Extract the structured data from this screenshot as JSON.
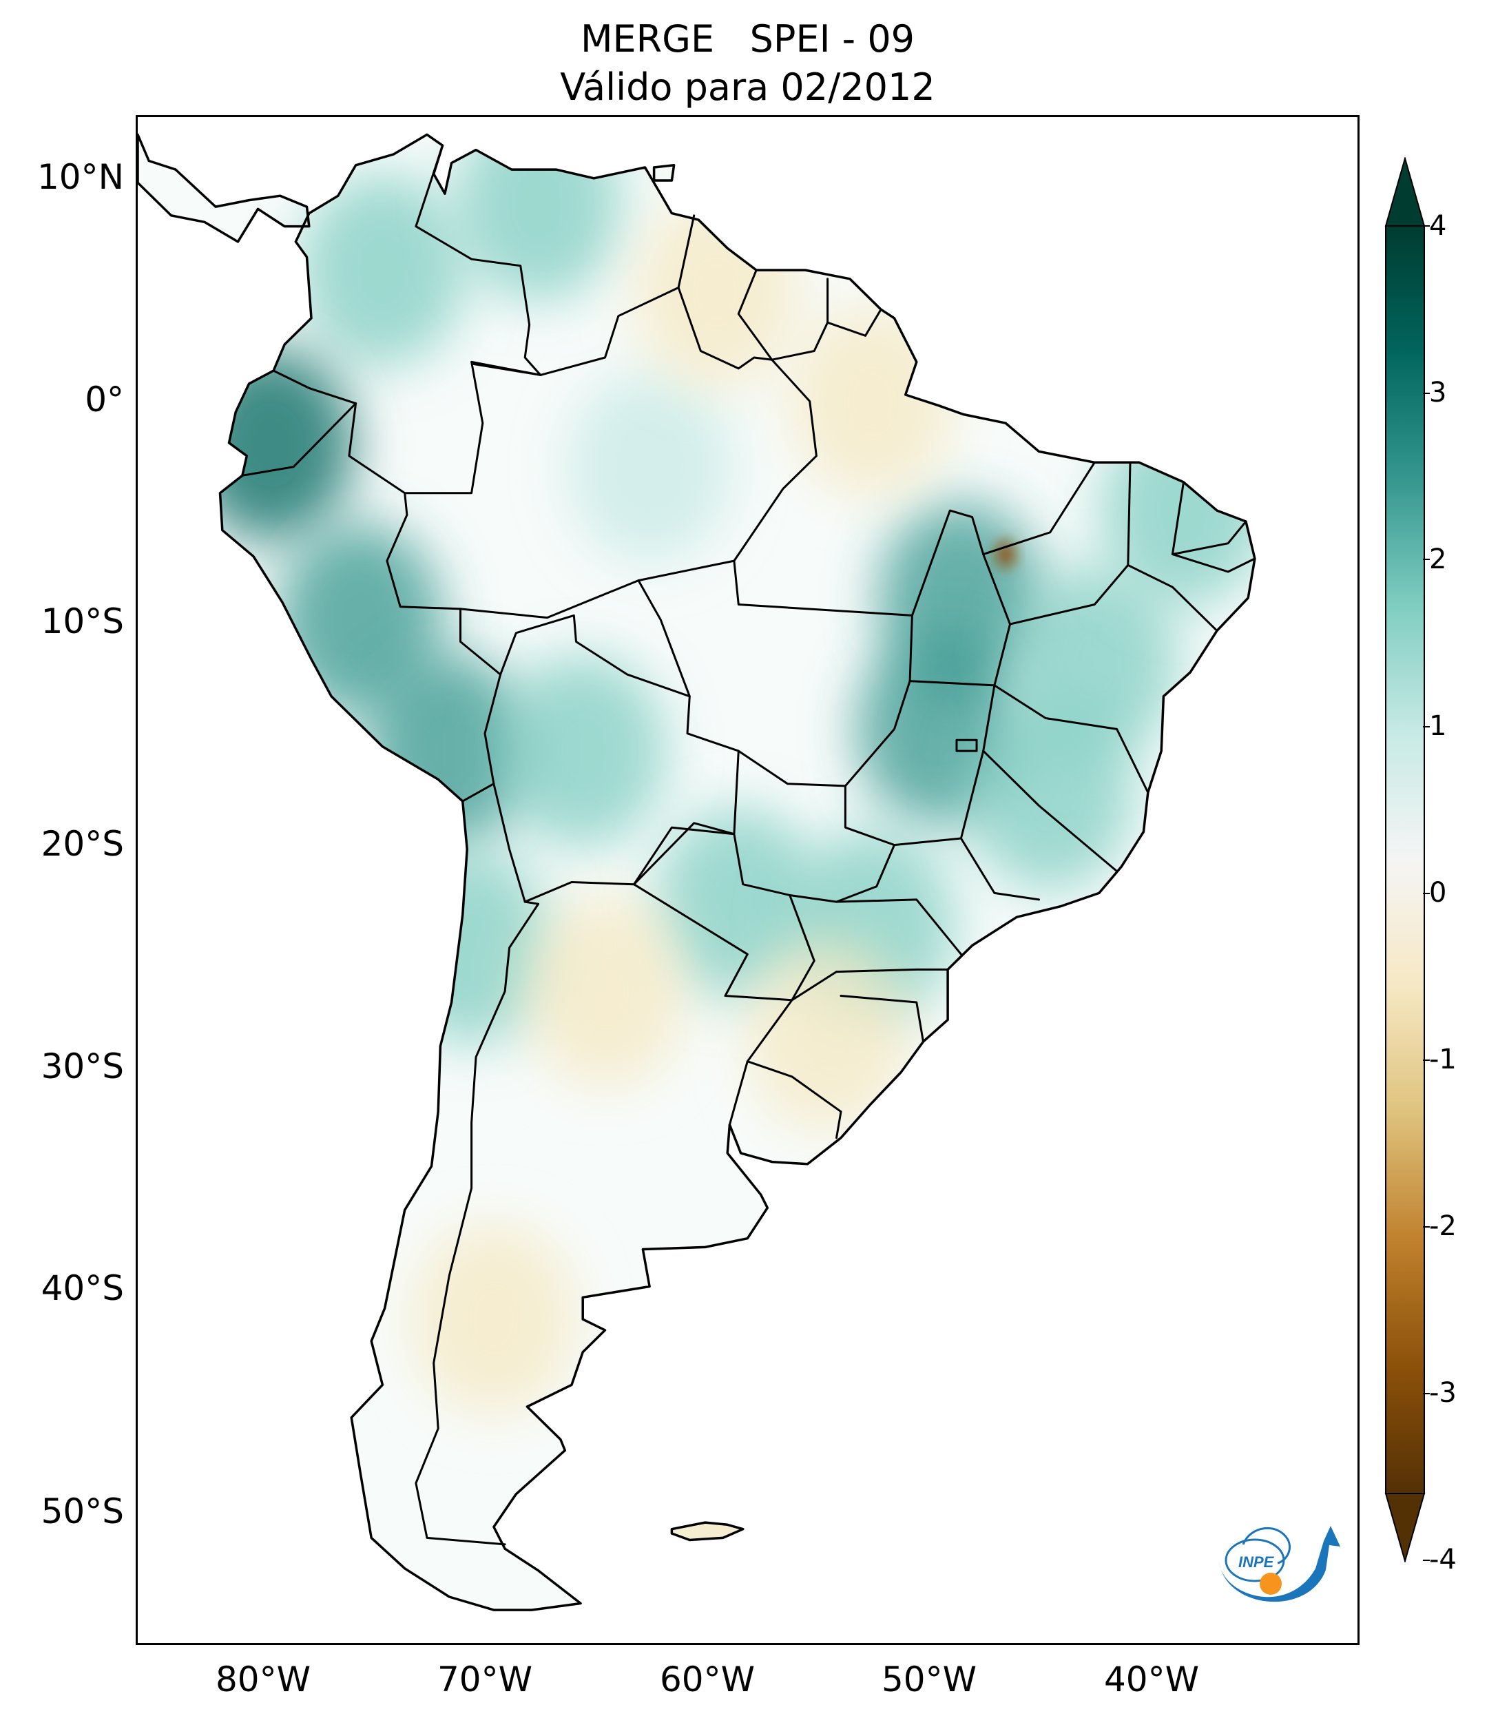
{
  "title": {
    "line1": "MERGE   SPEI - 09",
    "line2": "Válido para 02/2012"
  },
  "axes": {
    "lat_labels": [
      "10°N",
      "0°",
      "10°S",
      "20°S",
      "30°S",
      "40°S",
      "50°S"
    ],
    "lon_labels": [
      "80°W",
      "70°W",
      "60°W",
      "50°W",
      "40°W"
    ],
    "lon_range": [
      -85,
      -30
    ],
    "lat_range": [
      -57,
      13
    ]
  },
  "colorbar": {
    "labels": [
      "4",
      "3",
      "2",
      "1",
      "0",
      "-1",
      "-2",
      "-3",
      "-4"
    ],
    "range": [
      -4,
      4
    ],
    "extend": "both",
    "colormap": "BrBG",
    "colors": [
      "#543005",
      "#8c510a",
      "#bf812d",
      "#dfc27d",
      "#f6e8c3",
      "#f5f5f5",
      "#c7eae5",
      "#80cdc1",
      "#35978f",
      "#01665e",
      "#003c30"
    ]
  },
  "logo": {
    "text": "INPE",
    "colors": {
      "blue": "#1b75bb",
      "orange": "#f7941d"
    }
  },
  "chart_data": {
    "type": "heatmap",
    "title": "MERGE SPEI - 09 — Válido para 02/2012",
    "variable": "SPEI-09",
    "anomalies": [
      {
        "region": "Colombia Andes",
        "lon": -74,
        "lat": 6,
        "value": 1.8
      },
      {
        "region": "Ecuador coast",
        "lon": -79,
        "lat": -2,
        "value": 2.8
      },
      {
        "region": "Peru Andes",
        "lon": -75,
        "lat": -10,
        "value": 2.4
      },
      {
        "region": "Southern Peru",
        "lon": -71,
        "lat": -16,
        "value": 2.5
      },
      {
        "region": "Venezuela north",
        "lon": -67,
        "lat": 9,
        "value": 1.5
      },
      {
        "region": "Amazonas central",
        "lon": -62,
        "lat": -3,
        "value": 1.0
      },
      {
        "region": "Tocantins",
        "lon": -48,
        "lat": -9,
        "value": 2.0
      },
      {
        "region": "Goiás",
        "lon": -49,
        "lat": -15,
        "value": 2.0
      },
      {
        "region": "Minas Gerais",
        "lon": -44,
        "lat": -18,
        "value": 1.8
      },
      {
        "region": "Bahia",
        "lon": -42,
        "lat": -12,
        "value": 1.5
      },
      {
        "region": "Northeast coast",
        "lon": -38,
        "lat": -5,
        "value": 1.6
      },
      {
        "region": "Bolivia",
        "lon": -65,
        "lat": -16,
        "value": 1.2
      },
      {
        "region": "Paraguay",
        "lon": -58,
        "lat": -23,
        "value": 1.3
      },
      {
        "region": "Paraná",
        "lon": -52,
        "lat": -24,
        "value": 1.5
      },
      {
        "region": "Chile north",
        "lon": -70,
        "lat": -25,
        "value": 1.5
      },
      {
        "region": "Argentina Chaco",
        "lon": -64,
        "lat": -27,
        "value": -1.2
      },
      {
        "region": "Rio Grande do Sul",
        "lon": -54,
        "lat": -29,
        "value": -0.8
      },
      {
        "region": "Patagonia",
        "lon": -69,
        "lat": -42,
        "value": -1.0
      },
      {
        "region": "Pará/Amapá border",
        "lon": -52,
        "lat": 0,
        "value": -0.8
      },
      {
        "region": "Maranhão spot",
        "lon": -46,
        "lat": -7,
        "value": -3.0
      },
      {
        "region": "Guyana",
        "lon": -59,
        "lat": 5,
        "value": -0.5
      },
      {
        "region": "Falklands",
        "lon": -59,
        "lat": -51.7,
        "value": -0.5
      }
    ]
  }
}
